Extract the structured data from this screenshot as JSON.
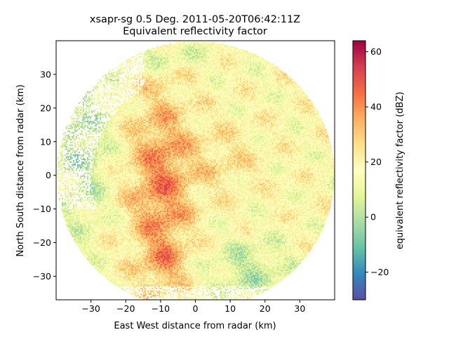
{
  "chart_data": {
    "type": "heatmap",
    "title_line1": "xsapr-sg 0.5 Deg. 2011-05-20T06:42:11Z",
    "title_line2": "Equivalent reflectivity factor",
    "xlabel": "East West distance from radar (km)",
    "ylabel": "North South distance from radar (km)",
    "xlim": [
      -40,
      40
    ],
    "ylim": [
      -37,
      40
    ],
    "xticks": [
      -30,
      -20,
      -10,
      0,
      10,
      20,
      30
    ],
    "yticks": [
      -30,
      -20,
      -10,
      0,
      10,
      20,
      30
    ],
    "radar_range_km": 40,
    "colorbar": {
      "label": "equivalent reflectivity factor (dBZ)",
      "range": [
        -30,
        64
      ],
      "ticks": [
        -20,
        0,
        20,
        40,
        60
      ],
      "colormap": "Spectral_r"
    }
  },
  "colors": {
    "colormap_stops": [
      "#5e4fa2",
      "#3288bd",
      "#66c2a5",
      "#abdda4",
      "#e6f598",
      "#ffffbf",
      "#fee08b",
      "#fdae61",
      "#f46d43",
      "#d53e4f",
      "#9e0142"
    ]
  }
}
